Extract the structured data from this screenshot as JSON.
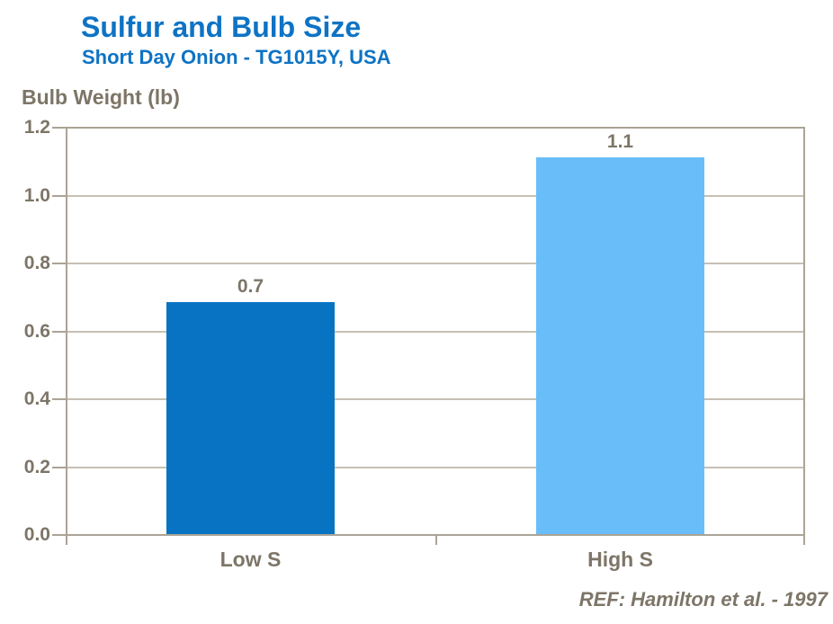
{
  "header": {
    "title": "Sulfur and Bulb Size",
    "subtitle": "Short Day Onion - TG1015Y, USA"
  },
  "footer": {
    "reference": "REF: Hamilton et al. - 1997"
  },
  "chart_data": {
    "type": "bar",
    "title": "Sulfur and Bulb Size",
    "subtitle": "Short Day Onion - TG1015Y, USA",
    "ylabel": "Bulb Weight (lb)",
    "xlabel": "",
    "categories": [
      "Low S",
      "High S"
    ],
    "values": [
      0.7,
      1.1
    ],
    "data_labels": [
      "0.7",
      "1.1"
    ],
    "plotted_values": [
      0.685,
      1.112
    ],
    "ylim": [
      0,
      1.2
    ],
    "ytick_step": 0.2,
    "ytick_labels": [
      "0.0",
      "0.2",
      "0.4",
      "0.6",
      "0.8",
      "1.0",
      "1.2"
    ],
    "grid": "horizontal",
    "legend": "none",
    "annotation": "REF: Hamilton et al. - 1997",
    "colors": {
      "bars": [
        "#0873C2",
        "#69BEFA"
      ],
      "title": "#0E73C4",
      "text": "#7D7567",
      "gridline": "#C6C0B4",
      "border": "#ABA396",
      "background": "#FFFFFF"
    }
  }
}
